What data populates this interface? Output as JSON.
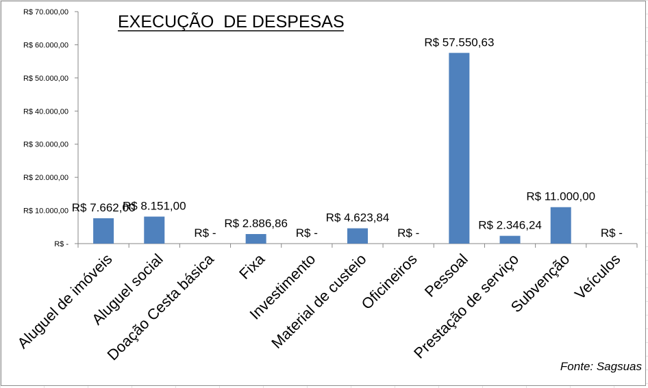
{
  "chart_data": {
    "type": "bar",
    "title": "EXECUÇÃO  DE DESPESAS",
    "source": "Fonte: Sagsuas",
    "categories": [
      "Aluguel de imóveis",
      "Aluguel social",
      "Doação Cesta básica",
      "Fixa",
      "Investimento",
      "Material de custeio",
      "Oficineiros",
      "Pessoal",
      "Prestação de serviço",
      "Subvenção",
      "Veículos"
    ],
    "values": [
      7662.0,
      8151.0,
      0,
      2886.86,
      0,
      4623.84,
      0,
      57550.63,
      2346.24,
      11000.0,
      0
    ],
    "data_labels": [
      "R$ 7.662,00",
      "R$ 8.151,00",
      "R$ -",
      "R$ 2.886,86",
      "R$ -",
      "R$ 4.623,84",
      "R$ -",
      "R$ 57.550,63",
      "R$ 2.346,24",
      "R$ 11.000,00",
      "R$ -"
    ],
    "y_ticks": [
      {
        "value": 0,
        "label": "R$ -"
      },
      {
        "value": 10000,
        "label": "R$ 10.000,00"
      },
      {
        "value": 20000,
        "label": "R$ 20.000,00"
      },
      {
        "value": 30000,
        "label": "R$ 30.000,00"
      },
      {
        "value": 40000,
        "label": "R$ 40.000,00"
      },
      {
        "value": 50000,
        "label": "R$ 50.000,00"
      },
      {
        "value": 60000,
        "label": "R$ 60.000,00"
      },
      {
        "value": 70000,
        "label": "R$ 70.000,00"
      }
    ],
    "ylim": [
      0,
      70000
    ],
    "grid": false,
    "legend": "none",
    "bar_color": "#4f81bd",
    "axis_color": "#868686"
  }
}
